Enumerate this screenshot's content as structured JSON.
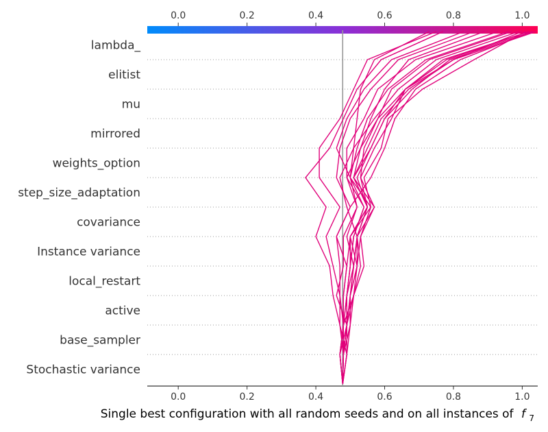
{
  "chart_data": {
    "type": "line",
    "subtype": "decision-plot",
    "xlabel": "Single best configuration with all random seeds and on all instances of",
    "xlabel_symbol": "f",
    "xlabel_subscript": "7",
    "xlim": [
      -0.09,
      1.045
    ],
    "xticks": [
      "0.0",
      "0.2",
      "0.4",
      "0.6",
      "0.8",
      "1.0"
    ],
    "xtick_values": [
      0.0,
      0.2,
      0.4,
      0.6,
      0.8,
      1.0
    ],
    "base_value": 0.478,
    "colorbar": {
      "low_color": "#008bfb",
      "mid_color": "#8b2fd6",
      "high_color": "#ff0052"
    },
    "line_color": "#e0007a",
    "features": [
      "lambda_",
      "elitist",
      "mu",
      "mirrored",
      "weights_option",
      "step_size_adaptation",
      "covariance",
      "Instance variance",
      "local_restart",
      "active",
      "base_sampler",
      "Stochastic variance"
    ],
    "feature_order_note": "top-to-bottom",
    "series": [
      {
        "values": [
          1.03,
          0.82,
          0.69,
          0.63,
          0.6,
          0.56,
          0.5,
          0.46,
          0.49,
          0.48,
          0.48,
          0.47,
          0.478
        ]
      },
      {
        "values": [
          1.02,
          0.77,
          0.66,
          0.6,
          0.56,
          0.52,
          0.55,
          0.52,
          0.53,
          0.51,
          0.49,
          0.48,
          0.478
        ]
      },
      {
        "values": [
          1.01,
          0.86,
          0.71,
          0.61,
          0.59,
          0.54,
          0.56,
          0.5,
          0.52,
          0.5,
          0.49,
          0.47,
          0.478
        ]
      },
      {
        "values": [
          1.0,
          0.8,
          0.67,
          0.59,
          0.55,
          0.51,
          0.57,
          0.53,
          0.54,
          0.51,
          0.5,
          0.48,
          0.478
        ]
      },
      {
        "values": [
          1.02,
          0.78,
          0.66,
          0.58,
          0.53,
          0.49,
          0.52,
          0.49,
          0.51,
          0.5,
          0.49,
          0.48,
          0.478
        ]
      },
      {
        "values": [
          0.99,
          0.75,
          0.64,
          0.57,
          0.51,
          0.5,
          0.54,
          0.51,
          0.5,
          0.49,
          0.48,
          0.47,
          0.478
        ]
      },
      {
        "values": [
          0.97,
          0.73,
          0.62,
          0.58,
          0.54,
          0.53,
          0.57,
          0.52,
          0.51,
          0.5,
          0.5,
          0.48,
          0.478
        ]
      },
      {
        "values": [
          1.03,
          0.79,
          0.68,
          0.6,
          0.56,
          0.51,
          0.55,
          0.5,
          0.5,
          0.49,
          0.49,
          0.48,
          0.478
        ]
      },
      {
        "values": [
          0.96,
          0.72,
          0.61,
          0.55,
          0.52,
          0.5,
          0.56,
          0.53,
          0.52,
          0.51,
          0.48,
          0.47,
          0.478
        ]
      },
      {
        "values": [
          0.93,
          0.69,
          0.58,
          0.54,
          0.49,
          0.49,
          0.54,
          0.51,
          0.5,
          0.49,
          0.49,
          0.48,
          0.478
        ]
      },
      {
        "values": [
          1.04,
          0.8,
          0.66,
          0.62,
          0.57,
          0.53,
          0.55,
          0.52,
          0.51,
          0.49,
          0.48,
          0.48,
          0.478
        ]
      },
      {
        "values": [
          0.89,
          0.67,
          0.6,
          0.56,
          0.53,
          0.51,
          0.55,
          0.5,
          0.49,
          0.48,
          0.48,
          0.47,
          0.478
        ]
      },
      {
        "values": [
          0.86,
          0.64,
          0.56,
          0.5,
          0.47,
          0.46,
          0.5,
          0.46,
          0.47,
          0.47,
          0.47,
          0.48,
          0.478
        ]
      },
      {
        "values": [
          0.83,
          0.62,
          0.54,
          0.49,
          0.46,
          0.5,
          0.52,
          0.48,
          0.48,
          0.46,
          0.49,
          0.49,
          0.478
        ]
      },
      {
        "values": [
          0.77,
          0.59,
          0.52,
          0.48,
          0.44,
          0.37,
          0.43,
          0.4,
          0.44,
          0.45,
          0.47,
          0.49,
          0.478
        ]
      },
      {
        "values": [
          0.75,
          0.55,
          0.51,
          0.47,
          0.41,
          0.41,
          0.47,
          0.43,
          0.45,
          0.47,
          0.48,
          0.48,
          0.478
        ]
      },
      {
        "values": [
          0.73,
          0.57,
          0.53,
          0.52,
          0.51,
          0.47,
          0.49,
          0.52,
          0.52,
          0.5,
          0.5,
          0.49,
          0.478
        ]
      }
    ]
  }
}
